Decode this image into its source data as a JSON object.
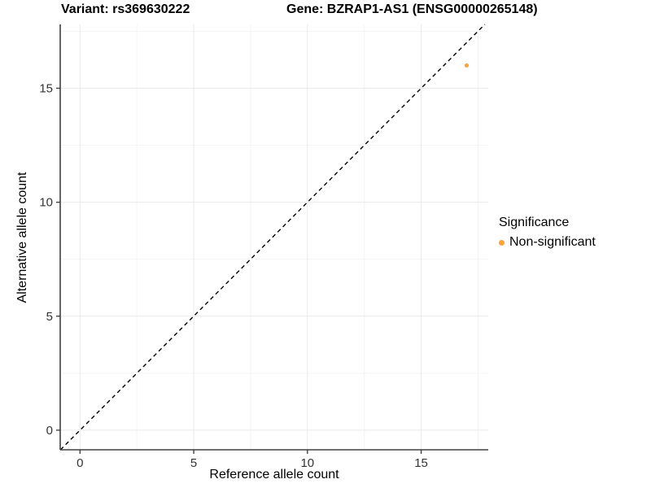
{
  "chart_data": {
    "type": "scatter",
    "title_left": "Variant: rs369630222",
    "title_right": "Gene: BZRAP1-AS1 (ENSG00000265148)",
    "xlabel": "Reference allele count",
    "ylabel": "Alternative allele count",
    "xlim": [
      -0.87,
      17.95
    ],
    "ylim": [
      -0.86,
      17.8
    ],
    "x_ticks": [
      0,
      5,
      10,
      15
    ],
    "y_ticks": [
      0,
      5,
      10,
      15
    ],
    "x_minor_ticks": [
      2.5,
      7.5,
      12.5,
      17.5
    ],
    "y_minor_ticks": [
      2.5,
      7.5,
      12.5,
      17.5
    ],
    "grid": "major and minor, light gray on white",
    "series": [
      {
        "name": "Non-significant",
        "color": "#FFA335",
        "points": [
          {
            "x": 17,
            "y": 16
          }
        ]
      }
    ],
    "reference_line": {
      "kind": "identity y=x",
      "style": "dashed",
      "color": "#000000"
    },
    "legend": {
      "title": "Significance",
      "position": "right",
      "entries": [
        {
          "label": "Non-significant",
          "color": "#FFA335"
        }
      ]
    }
  },
  "style_colors": {
    "axis_line": "#404040",
    "tick_mark": "#404040",
    "tick_label": "#333333",
    "grid_major": "#E9E9E9",
    "grid_minor": "#F4F4F4",
    "background": "#FFFFFF"
  }
}
